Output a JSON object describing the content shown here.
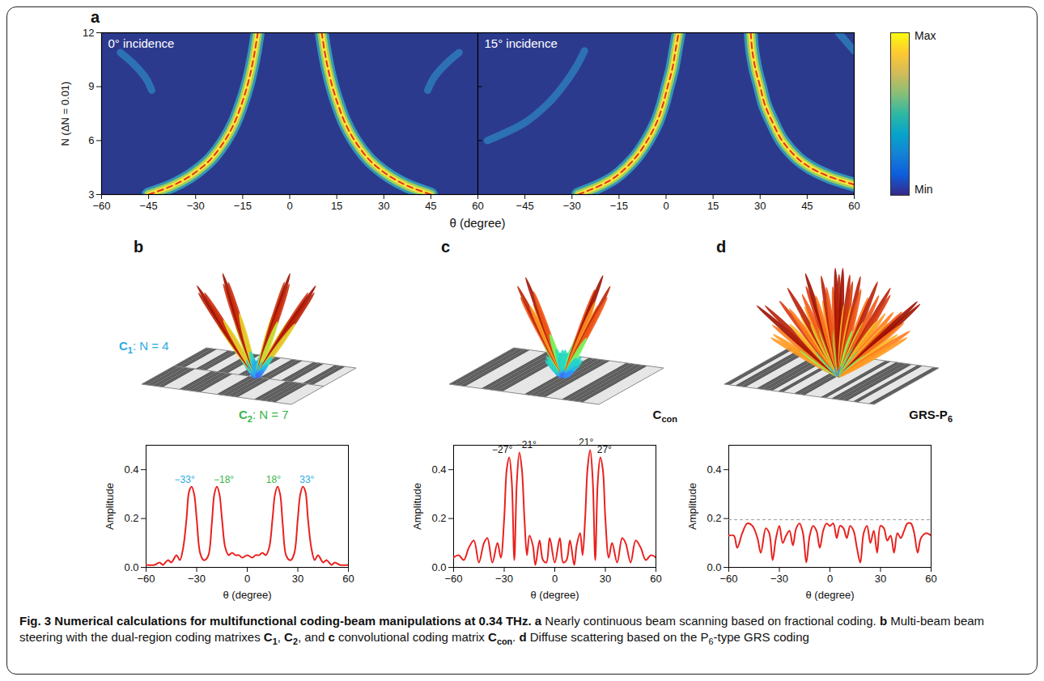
{
  "chart_data": [
    {
      "type": "heatmap",
      "panel": "a",
      "title": "0° incidence",
      "xlabel": "θ (degree)",
      "ylabel": "N (ΔN = 0.01)",
      "xlim": [
        -60,
        60
      ],
      "xticks": [
        -60,
        -45,
        -30,
        -15,
        0,
        15,
        30,
        45,
        60
      ],
      "ylim": [
        3,
        12
      ],
      "yticks": [
        3,
        6,
        9,
        12
      ],
      "color": "#e53224",
      "line_style": "dashed",
      "main_beams": [
        [
          [
            -45,
            3
          ],
          [
            -37.3,
            3.5
          ],
          [
            -32,
            4
          ],
          [
            -28.1,
            4.5
          ],
          [
            -25,
            5
          ],
          [
            -20.7,
            6
          ],
          [
            -17.6,
            7
          ],
          [
            -15.4,
            8
          ],
          [
            -13.6,
            9
          ],
          [
            -12.2,
            10
          ],
          [
            -11.1,
            11
          ],
          [
            -10.2,
            12
          ]
        ],
        [
          [
            45,
            3
          ],
          [
            37.3,
            3.5
          ],
          [
            32,
            4
          ],
          [
            28.1,
            4.5
          ],
          [
            25,
            5
          ],
          [
            20.7,
            6
          ],
          [
            17.6,
            7
          ],
          [
            15.4,
            8
          ],
          [
            13.6,
            9
          ],
          [
            12.2,
            10
          ],
          [
            11.1,
            11
          ],
          [
            10.2,
            12
          ]
        ]
      ],
      "secondary_beams": [
        [
          [
            -44,
            8.8
          ],
          [
            -46,
            9.5
          ],
          [
            -50,
            10.3
          ],
          [
            -54,
            10.9
          ]
        ],
        [
          [
            44,
            8.8
          ],
          [
            46,
            9.5
          ],
          [
            50,
            10.3
          ],
          [
            54,
            10.9
          ]
        ]
      ]
    },
    {
      "type": "heatmap",
      "title": "15° incidence",
      "tick_labels": "x",
      "xlim": [
        -60,
        60
      ],
      "xticks": [
        -45,
        -30,
        -15,
        0,
        15,
        30,
        45,
        60
      ],
      "ylim": [
        3,
        12
      ],
      "yticks": [
        3,
        6,
        9,
        12
      ],
      "color": "#e53224",
      "line_style": "dashed",
      "main_beams": [
        [
          [
            -28,
            3
          ],
          [
            -21,
            3.5
          ],
          [
            -16,
            4
          ],
          [
            -10,
            5
          ],
          [
            -6,
            6
          ],
          [
            -3,
            7
          ],
          [
            -1,
            8
          ],
          [
            0.5,
            9
          ],
          [
            2,
            10
          ],
          [
            3,
            11
          ],
          [
            4,
            12
          ]
        ],
        [
          [
            60,
            3.55
          ],
          [
            52,
            4
          ],
          [
            46,
            4.5
          ],
          [
            42,
            5
          ],
          [
            37,
            6
          ],
          [
            34,
            7
          ],
          [
            31.5,
            8
          ],
          [
            30,
            9
          ],
          [
            28.5,
            10
          ],
          [
            27.5,
            11
          ],
          [
            27,
            12
          ]
        ]
      ],
      "secondary_beams": [
        [
          [
            -57,
            6
          ],
          [
            -45,
            7
          ],
          [
            -38,
            8
          ],
          [
            -33,
            9
          ],
          [
            -29,
            10
          ],
          [
            -26,
            11
          ]
        ],
        [
          [
            60,
            11
          ],
          [
            55,
            12
          ]
        ]
      ],
      "colorbar": {
        "max_label": "Max",
        "min_label": "Min"
      }
    },
    {
      "type": "line",
      "panel": "b",
      "xlabel": "θ (degree)",
      "ylabel": "Amplitude",
      "xlim": [
        -60,
        60
      ],
      "xticks": [
        -60,
        -30,
        0,
        30,
        60
      ],
      "ylim": [
        0,
        0.5
      ],
      "yticks": [
        {
          "value": 0,
          "label": "0.0"
        },
        0.2,
        0.4
      ],
      "color": "#e8221f",
      "x": [
        -60,
        -55,
        -52,
        -50,
        -47,
        -45,
        -42,
        -40,
        -38,
        -36,
        -34.5,
        -33,
        -31.5,
        -30,
        -28,
        -26,
        -25,
        -23,
        -21,
        -19.5,
        -18,
        -16.5,
        -15,
        -13,
        -11,
        -9,
        -7,
        -5,
        -3,
        0,
        3,
        5,
        7,
        9,
        11,
        13,
        15,
        16.5,
        18,
        19.5,
        21,
        23,
        25,
        26,
        28,
        30,
        31.5,
        33,
        34.5,
        36,
        38,
        40,
        42,
        45,
        47,
        50,
        52,
        55,
        60
      ],
      "values": [
        0.01,
        0.01,
        0.02,
        0.01,
        0.03,
        0.02,
        0.05,
        0.03,
        0.08,
        0.2,
        0.31,
        0.33,
        0.3,
        0.2,
        0.06,
        0.03,
        0.03,
        0.05,
        0.18,
        0.3,
        0.33,
        0.3,
        0.2,
        0.08,
        0.05,
        0.06,
        0.05,
        0.05,
        0.04,
        0.05,
        0.04,
        0.05,
        0.05,
        0.06,
        0.05,
        0.08,
        0.2,
        0.3,
        0.33,
        0.3,
        0.18,
        0.05,
        0.03,
        0.03,
        0.06,
        0.2,
        0.3,
        0.33,
        0.31,
        0.2,
        0.08,
        0.03,
        0.05,
        0.02,
        0.03,
        0.01,
        0.02,
        0.01,
        0.01
      ],
      "annotations": [
        {
          "text": "−33°",
          "x": -33,
          "y": 0.33,
          "color": "#29abe2"
        },
        {
          "text": "−18°",
          "x": -18,
          "y": 0.33,
          "color": "#39b54a"
        },
        {
          "text": "18°",
          "x": 18,
          "y": 0.33,
          "color": "#39b54a"
        },
        {
          "text": "33°",
          "x": 33,
          "y": 0.33,
          "color": "#29abe2"
        }
      ],
      "illustration_labels": [
        {
          "symbol": "C",
          "sub": "1",
          "text": ": N = 4",
          "color": "#29abe2"
        },
        {
          "symbol": "C",
          "sub": "2",
          "text": ": N = 7",
          "color": "#39b54a"
        }
      ]
    },
    {
      "type": "line",
      "panel": "c",
      "xlabel": "θ (degree)",
      "ylabel": "Amplitude",
      "xlim": [
        -60,
        60
      ],
      "xticks": [
        -60,
        -30,
        0,
        30,
        60
      ],
      "ylim": [
        0,
        0.5
      ],
      "yticks": [
        {
          "value": 0,
          "label": "0.0"
        },
        0.2,
        0.4
      ],
      "color": "#e8221f",
      "x": [
        -60,
        -57,
        -54,
        -51,
        -48,
        -45,
        -42,
        -40,
        -37,
        -34,
        -32,
        -30,
        -28.5,
        -27,
        -25.5,
        -24,
        -22.5,
        -21,
        -19.5,
        -18,
        -16.5,
        -15,
        -13,
        -11.5,
        -9,
        -7,
        -5,
        -3,
        0,
        3,
        5,
        7,
        9,
        11.5,
        13,
        15,
        16.5,
        18,
        19.5,
        21,
        22.5,
        24,
        25.5,
        27,
        28.5,
        30,
        32,
        34,
        37,
        40,
        42,
        45,
        48,
        51,
        54,
        57,
        60
      ],
      "values": [
        0.04,
        0.05,
        0.03,
        0.08,
        0.11,
        0.02,
        0.1,
        0.12,
        0.02,
        0.1,
        0.04,
        0.2,
        0.4,
        0.45,
        0.35,
        0.03,
        0.35,
        0.47,
        0.4,
        0.2,
        0.05,
        0.13,
        0.09,
        0.01,
        0.11,
        0.03,
        0.02,
        0.12,
        0.02,
        0.12,
        0.02,
        0.03,
        0.11,
        0.01,
        0.09,
        0.14,
        0.05,
        0.2,
        0.41,
        0.48,
        0.36,
        0.03,
        0.35,
        0.45,
        0.4,
        0.2,
        0.04,
        0.1,
        0.02,
        0.12,
        0.1,
        0.02,
        0.11,
        0.08,
        0.03,
        0.05,
        0.04
      ],
      "annotations": [
        {
          "text": "−27°",
          "x": -27,
          "y": 0.45,
          "color": "#111111"
        },
        {
          "text": "−21°",
          "x": -21,
          "y": 0.47,
          "color": "#111111"
        },
        {
          "text": "21°",
          "x": 21,
          "y": 0.48,
          "color": "#111111"
        },
        {
          "text": "27°",
          "x": 27,
          "y": 0.45,
          "color": "#111111"
        }
      ],
      "illustration_labels": [
        {
          "symbol": "C",
          "sub": "con",
          "text": "",
          "color": "#111111"
        }
      ]
    },
    {
      "type": "line",
      "panel": "d",
      "xlabel": "θ (degree)",
      "ylabel": "Amplitude",
      "xlim": [
        -60,
        60
      ],
      "xticks": [
        -60,
        -30,
        0,
        30,
        60
      ],
      "ylim": [
        0,
        0.5
      ],
      "yticks": [
        {
          "value": 0,
          "label": "0.0"
        },
        0.2,
        0.4
      ],
      "color": "#e8221f",
      "reference_line": 0.195,
      "x": [
        -60,
        -57,
        -55,
        -52,
        -49,
        -46,
        -43,
        -41,
        -38,
        -36,
        -34,
        -32,
        -30,
        -28,
        -26,
        -24,
        -22,
        -20,
        -18,
        -16,
        -14,
        -12,
        -10,
        -8,
        -6,
        -4,
        -2,
        0,
        2,
        4,
        6,
        8,
        10,
        12,
        14,
        16,
        18,
        20,
        22,
        24,
        26,
        28,
        30,
        32,
        34,
        36,
        38,
        40,
        42,
        44,
        46,
        48,
        50,
        52,
        54,
        57,
        60
      ],
      "values": [
        0.13,
        0.13,
        0.08,
        0.14,
        0.18,
        0.17,
        0.12,
        0.06,
        0.16,
        0.14,
        0.03,
        0.12,
        0.17,
        0.1,
        0.13,
        0.15,
        0.09,
        0.16,
        0.18,
        0.14,
        0.02,
        0.13,
        0.17,
        0.15,
        0.08,
        0.15,
        0.18,
        0.17,
        0.18,
        0.12,
        0.17,
        0.16,
        0.12,
        0.17,
        0.15,
        0.08,
        0.02,
        0.14,
        0.17,
        0.1,
        0.15,
        0.06,
        0.17,
        0.16,
        0.11,
        0.13,
        0.06,
        0.14,
        0.12,
        0.15,
        0.18,
        0.18,
        0.14,
        0.06,
        0.12,
        0.14,
        0.13
      ],
      "illustration_labels": [
        {
          "symbol": "GRS-P",
          "sub": "6",
          "text": "",
          "color": "#111111"
        }
      ]
    }
  ],
  "caption": [
    {
      "text": "Fig. 3 Numerical calculations for multifunctional coding-beam manipulations at 0.34 THz.",
      "bold": true
    },
    {
      "text": " a",
      "bold": true
    },
    {
      "text": " Nearly continuous beam scanning based on fractional coding. "
    },
    {
      "text": "b",
      "bold": true
    },
    {
      "text": " Multi-beam beam steering with the dual-region coding matrixes "
    },
    {
      "text": "C",
      "bold": true
    },
    {
      "text": "1",
      "bold": true,
      "sub": true
    },
    {
      "text": ", "
    },
    {
      "text": "C",
      "bold": true
    },
    {
      "text": "2",
      "bold": true,
      "sub": true
    },
    {
      "text": ", and "
    },
    {
      "text": "c",
      "bold": true
    },
    {
      "text": " convolutional coding matrix "
    },
    {
      "text": "C",
      "bold": true
    },
    {
      "text": "con",
      "bold": true,
      "sub": true
    },
    {
      "text": ". "
    },
    {
      "text": "d",
      "bold": true
    },
    {
      "text": " Diffuse scattering based on the P"
    },
    {
      "text": "6",
      "sub": true
    },
    {
      "text": "-type GRS coding"
    }
  ]
}
